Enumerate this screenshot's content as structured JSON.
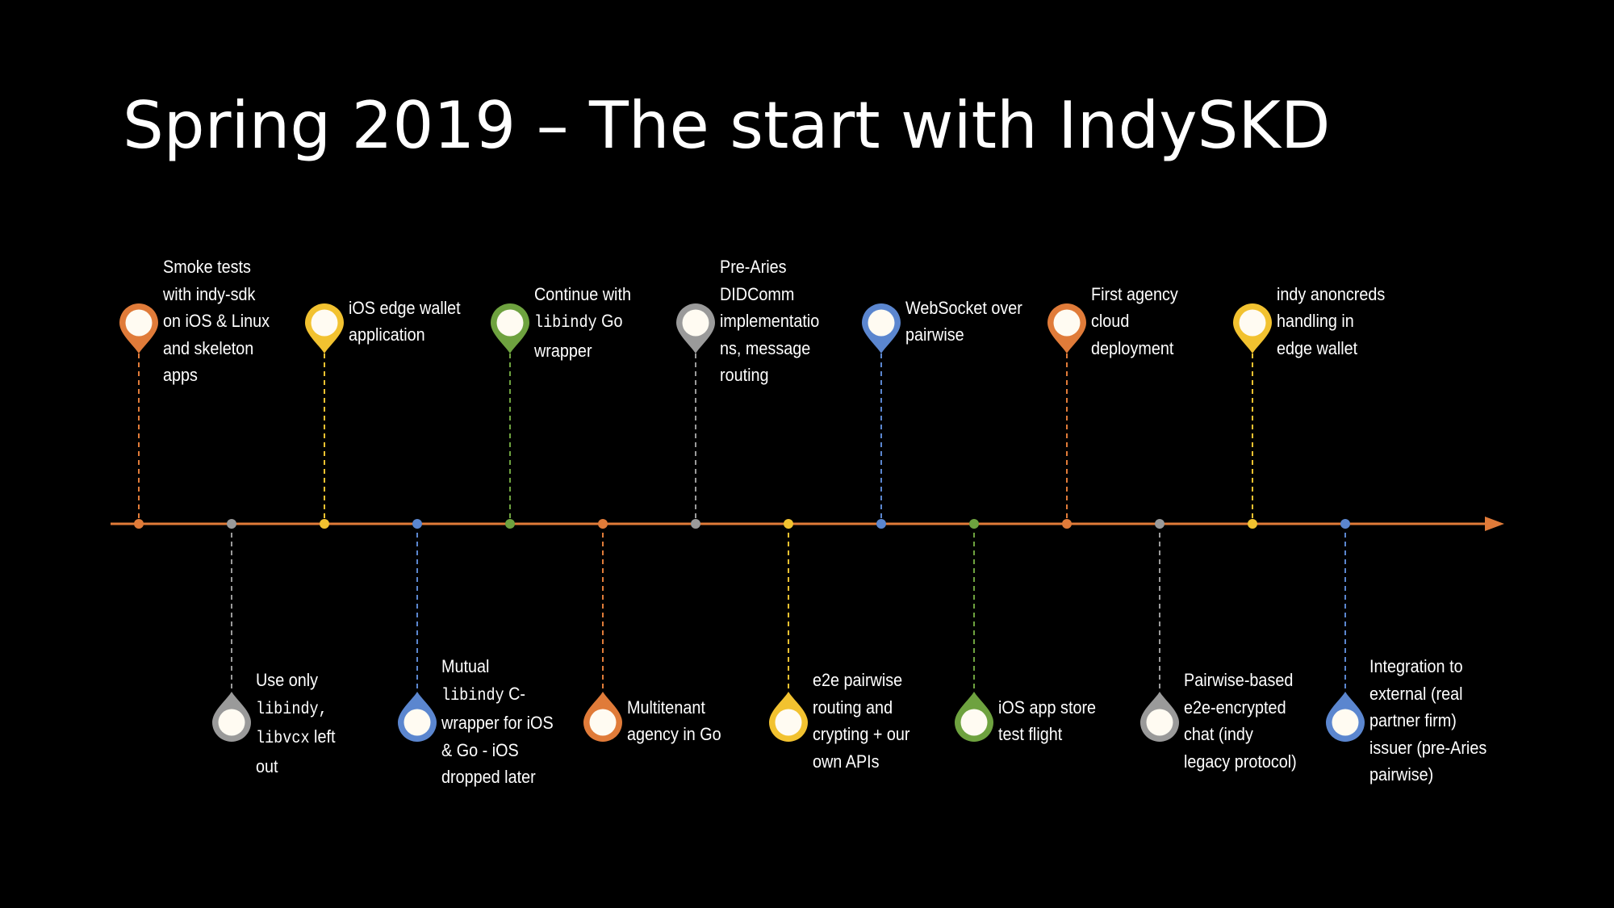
{
  "slide": {
    "title": "Spring 2019 – The start with IndySKD"
  },
  "colors": {
    "background": "#000000",
    "axis": "#e17b39",
    "orange": "#e07b39",
    "gray": "#9a9a9a",
    "yellow": "#f2c230",
    "blue": "#5b86cf",
    "green": "#6ea23f",
    "pin_inner": "#fffbf2"
  },
  "timeline": {
    "events": [
      {
        "side": "top",
        "color": "orange",
        "lines": [
          [
            {
              "t": "Smoke tests"
            }
          ],
          [
            {
              "t": "with indy-sdk"
            }
          ],
          [
            {
              "t": "on iOS & Linux"
            }
          ],
          [
            {
              "t": "and skeleton"
            }
          ],
          [
            {
              "t": "apps"
            }
          ]
        ]
      },
      {
        "side": "bottom",
        "color": "gray",
        "lines": [
          [
            {
              "t": "Use only"
            }
          ],
          [
            {
              "t": "libindy,",
              "mono": true
            }
          ],
          [
            {
              "t": "libvcx",
              "mono": true
            },
            {
              "t": " left"
            }
          ],
          [
            {
              "t": "out"
            }
          ]
        ]
      },
      {
        "side": "top",
        "color": "yellow",
        "lines": [
          [
            {
              "t": "iOS edge wallet"
            }
          ],
          [
            {
              "t": "application"
            }
          ]
        ]
      },
      {
        "side": "bottom",
        "color": "blue",
        "lines": [
          [
            {
              "t": "Mutual"
            }
          ],
          [
            {
              "t": "libindy",
              "mono": true
            },
            {
              "t": " C-"
            }
          ],
          [
            {
              "t": "wrapper for iOS"
            }
          ],
          [
            {
              "t": "& Go - iOS"
            }
          ],
          [
            {
              "t": "dropped later"
            }
          ]
        ]
      },
      {
        "side": "top",
        "color": "green",
        "lines": [
          [
            {
              "t": "Continue with"
            }
          ],
          [
            {
              "t": "libindy",
              "mono": true
            },
            {
              "t": " Go"
            }
          ],
          [
            {
              "t": "wrapper"
            }
          ]
        ]
      },
      {
        "side": "bottom",
        "color": "orange",
        "lines": [
          [
            {
              "t": "Multitenant"
            }
          ],
          [
            {
              "t": "agency in Go"
            }
          ]
        ]
      },
      {
        "side": "top",
        "color": "gray",
        "lines": [
          [
            {
              "t": "Pre-Aries"
            }
          ],
          [
            {
              "t": "DIDComm"
            }
          ],
          [
            {
              "t": "implementatio"
            }
          ],
          [
            {
              "t": "ns, message"
            }
          ],
          [
            {
              "t": "routing"
            }
          ]
        ]
      },
      {
        "side": "bottom",
        "color": "yellow",
        "lines": [
          [
            {
              "t": "e2e pairwise"
            }
          ],
          [
            {
              "t": "routing and"
            }
          ],
          [
            {
              "t": "crypting + our"
            }
          ],
          [
            {
              "t": "own APIs"
            }
          ]
        ]
      },
      {
        "side": "top",
        "color": "blue",
        "lines": [
          [
            {
              "t": "WebSocket over"
            }
          ],
          [
            {
              "t": "pairwise"
            }
          ]
        ]
      },
      {
        "side": "bottom",
        "color": "green",
        "lines": [
          [
            {
              "t": "iOS app store"
            }
          ],
          [
            {
              "t": "test flight"
            }
          ]
        ]
      },
      {
        "side": "top",
        "color": "orange",
        "lines": [
          [
            {
              "t": "First agency"
            }
          ],
          [
            {
              "t": "cloud"
            }
          ],
          [
            {
              "t": "deployment"
            }
          ]
        ]
      },
      {
        "side": "bottom",
        "color": "gray",
        "lines": [
          [
            {
              "t": "Pairwise-based"
            }
          ],
          [
            {
              "t": "e2e-encrypted"
            }
          ],
          [
            {
              "t": "chat (indy"
            }
          ],
          [
            {
              "t": "legacy protocol)"
            }
          ]
        ]
      },
      {
        "side": "top",
        "color": "yellow",
        "lines": [
          [
            {
              "t": "indy anoncreds"
            }
          ],
          [
            {
              "t": "handling in"
            }
          ],
          [
            {
              "t": "edge wallet"
            }
          ]
        ]
      },
      {
        "side": "bottom",
        "color": "blue",
        "lines": [
          [
            {
              "t": "Integration to"
            }
          ],
          [
            {
              "t": "external (real"
            }
          ],
          [
            {
              "t": "partner firm)"
            }
          ],
          [
            {
              "t": "issuer (pre-Aries"
            }
          ],
          [
            {
              "t": "pairwise)"
            }
          ]
        ]
      }
    ]
  }
}
